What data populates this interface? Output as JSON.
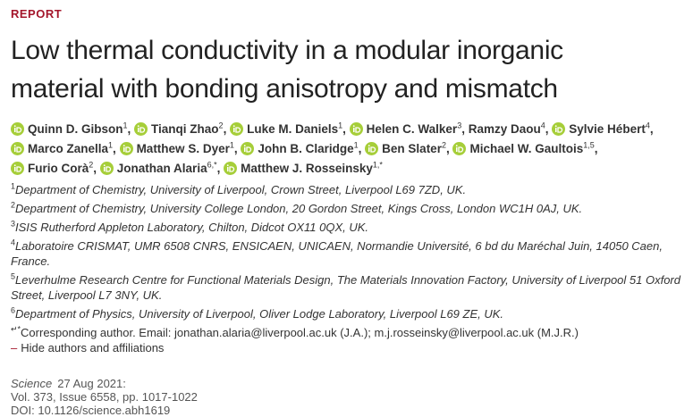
{
  "header": {
    "label": "REPORT",
    "title": [
      "Low thermal conductivity in a modular inorganic",
      "material with bonding anisotropy and mismatch"
    ]
  },
  "authors": [
    {
      "name": "Quinn D. Gibson",
      "aff": "1",
      "orcid": true
    },
    {
      "name": "Tianqi Zhao",
      "aff": "2",
      "orcid": true
    },
    {
      "name": "Luke M. Daniels",
      "aff": "1",
      "orcid": true
    },
    {
      "name": "Helen C. Walker",
      "aff": "3",
      "orcid": true
    },
    {
      "name": "Ramzy Daou",
      "aff": "4",
      "orcid": false
    },
    {
      "name": "Sylvie Hébert",
      "aff": "4",
      "orcid": true
    },
    {
      "name": "Marco Zanella",
      "aff": "1",
      "orcid": true
    },
    {
      "name": "Matthew S. Dyer",
      "aff": "1",
      "orcid": true
    },
    {
      "name": "John B. Claridge",
      "aff": "1",
      "orcid": true
    },
    {
      "name": "Ben Slater",
      "aff": "2",
      "orcid": true
    },
    {
      "name": "Michael W. Gaultois",
      "aff": "1,5",
      "orcid": true
    },
    {
      "name": "Furio Corà",
      "aff": "2",
      "orcid": true
    },
    {
      "name": "Jonathan Alaria",
      "aff": "6,*",
      "orcid": true
    },
    {
      "name": "Matthew J. Rosseinsky",
      "aff": "1,*",
      "orcid": true
    }
  ],
  "affiliations": [
    {
      "num": "1",
      "text": "Department of Chemistry, University of Liverpool, Crown Street, Liverpool L69 7ZD, UK."
    },
    {
      "num": "2",
      "text": "Department of Chemistry, University College London, 20 Gordon Street, Kings Cross, London WC1H 0AJ, UK."
    },
    {
      "num": "3",
      "text": "ISIS Rutherford Appleton Laboratory, Chilton, Didcot OX11 0QX, UK."
    },
    {
      "num": "4",
      "text": "Laboratoire CRISMAT, UMR 6508 CNRS, ENSICAEN, UNICAEN, Normandie Université, 6 bd du Maréchal Juin, 14050 Caen, France."
    },
    {
      "num": "5",
      "text": "Leverhulme Research Centre for Functional Materials Design, The Materials Innovation Factory, University of Liverpool 51 Oxford Street, Liverpool L7 3NY, UK."
    },
    {
      "num": "6",
      "text": "Department of Physics, University of Liverpool, Oliver Lodge Laboratory, Liverpool L69 ZE, UK."
    }
  ],
  "corresponding": {
    "symbol": "↵*",
    "text": "Corresponding author. Email: jonathan.alaria@liverpool.ac.uk (J.A.); m.j.rosseinsky@liverpool.ac.uk (M.J.R.)"
  },
  "toggle": {
    "symbol": "–",
    "text": "Hide authors and affiliations"
  },
  "citation": {
    "journal": "Science",
    "date": "27 Aug 2021:",
    "volume": "Vol. 373, Issue 6558, pp. 1017-1022",
    "doi": "DOI: 10.1126/science.abh1619"
  }
}
